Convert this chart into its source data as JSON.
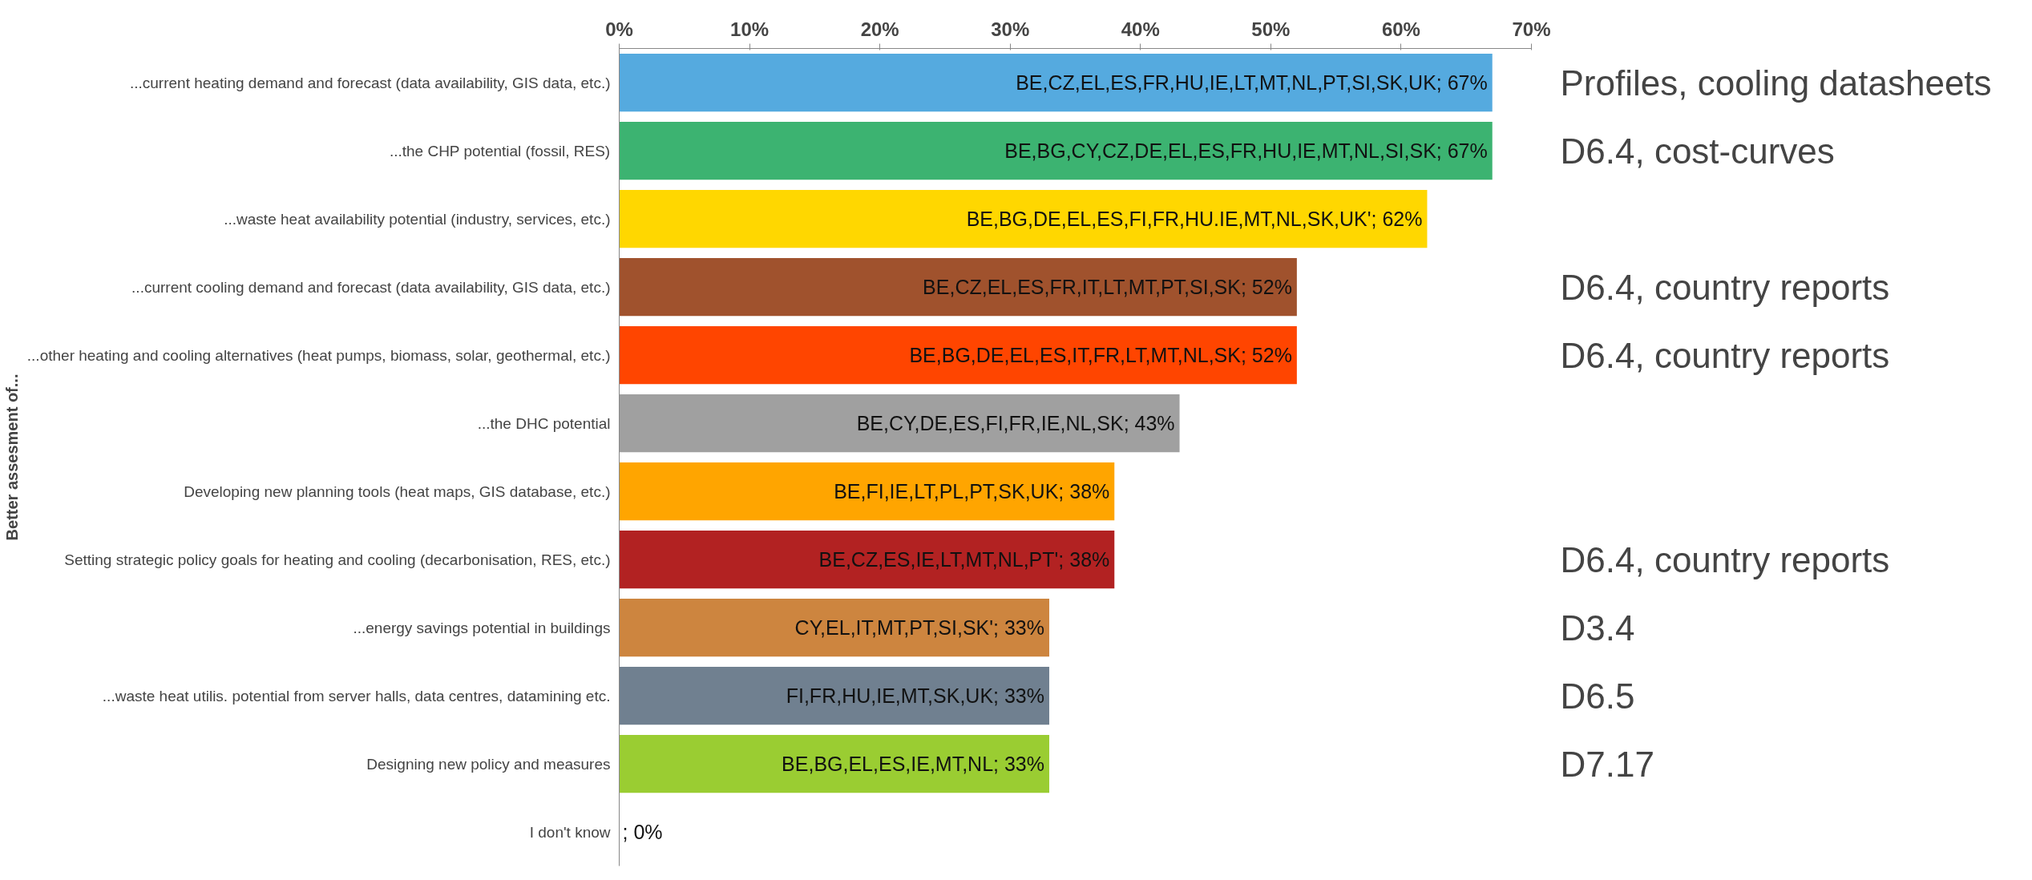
{
  "chart_data": {
    "type": "bar",
    "orientation": "horizontal",
    "ylabel": "Better assesment of...",
    "categories": [
      "...current heating demand and forecast (data availability, GIS data, etc.)",
      "...the CHP potential (fossil, RES)",
      "...waste heat availability potential (industry, services, etc.)",
      "...current cooling demand and forecast (data availability, GIS data, etc.)",
      "...other heating and cooling alternatives (heat pumps, biomass, solar, geothermal, etc.)",
      "...the DHC potential",
      "Developing new planning tools (heat maps, GIS database, etc.)",
      "Setting strategic policy goals for heating and cooling (decarbonisation, RES, etc.)",
      "...energy savings potential in buildings",
      "...waste heat utilis. potential from server halls, data centres, datamining etc.",
      "Designing new policy and measures",
      "I don't know"
    ],
    "values": [
      67,
      67,
      62,
      52,
      52,
      43,
      38,
      38,
      33,
      33,
      33,
      0
    ],
    "colors": [
      "#55aadf",
      "#3cb371",
      "#ffd700",
      "#a0522d",
      "#ff4500",
      "#a0a0a0",
      "#ffa500",
      "#b22222",
      "#cd853f",
      "#708090",
      "#9acd32",
      "#ffffff"
    ],
    "value_labels": [
      "BE,CZ,EL,ES,FR,HU,IE,LT,MT,NL,PT,SI,SK,UK; 67%",
      "BE,BG,CY,CZ,DE,EL,ES,FR,HU,IE,MT,NL,SI,SK; 67%",
      "BE,BG,DE,EL,ES,FI,FR,HU.IE,MT,NL,SK,UK'; 62%",
      "BE,CZ,EL,ES,FR,IT,LT,MT,PT,SI,SK; 52%",
      "BE,BG,DE,EL,ES,IT,FR,LT,MT,NL,SK; 52%",
      "BE,CY,DE,ES,FI,FR,IE,NL,SK; 43%",
      "BE,FI,IE,LT,PL,PT,SK,UK; 38%",
      "BE,CZ,ES,IE,LT,MT,NL,PT'; 38%",
      "CY,EL,IT,MT,PT,SI,SK'; 33%",
      "FI,FR,HU,IE,MT,SK,UK; 33%",
      "BE,BG,EL,ES,IE,MT,NL; 33%",
      "; 0%"
    ],
    "xlim": [
      0,
      70
    ],
    "xticks": [
      {
        "value": 0,
        "label": "0%"
      },
      {
        "value": 10,
        "label": "10%"
      },
      {
        "value": 20,
        "label": "20%"
      },
      {
        "value": 30,
        "label": "30%"
      },
      {
        "value": 40,
        "label": "40%"
      },
      {
        "value": 50,
        "label": "50%"
      },
      {
        "value": 60,
        "label": "60%"
      },
      {
        "value": 70,
        "label": "70%"
      }
    ],
    "grid": false,
    "y2_categories": [
      "Profiles, cooling datasheets",
      "D6.4, cost-curves",
      null,
      "D6.4, country reports",
      "D6.4, country reports",
      null,
      null,
      "D6.4, country reports",
      "D3.4",
      "D6.5",
      "D7.17",
      null
    ]
  }
}
